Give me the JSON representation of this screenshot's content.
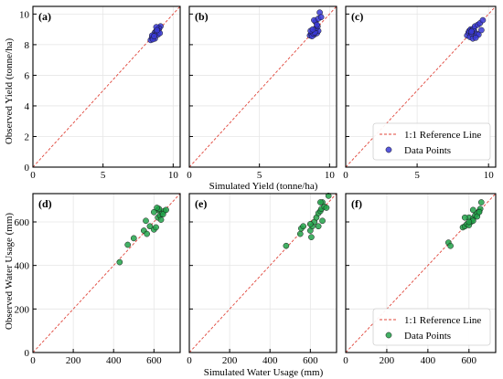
{
  "figure": {
    "top_ylabel": "Observed Yield (tonne/ha)",
    "top_xlabel": "Simulated Yield (tonne/ha)",
    "bottom_ylabel": "Observed Water Usage (mm)",
    "bottom_xlabel": "Simulated Water Usage (mm)"
  },
  "legend": {
    "reference_label": "1:1 Reference Line",
    "points_label": "Data Points"
  },
  "colors": {
    "yield_points": "#3a3ad6",
    "water_points": "#22a34a",
    "reference_line": "#e0453a",
    "grid": "#e6e6e6"
  },
  "chart_data": [
    {
      "type": "scatter",
      "panel_label": "(a)",
      "xlim": [
        0,
        10.5
      ],
      "ylim": [
        0,
        10.5
      ],
      "xticks": [
        "0",
        "5",
        "10"
      ],
      "yticks": [
        "0",
        "2",
        "4",
        "6",
        "8",
        "10"
      ],
      "xtick_values": [
        0,
        5,
        10
      ],
      "ytick_values": [
        0,
        2,
        4,
        6,
        8,
        10
      ],
      "grid": true,
      "reference_line": "1:1",
      "series": [
        {
          "name": "Data Points",
          "x": [
            8.4,
            8.5,
            8.6,
            8.7,
            8.8,
            8.9,
            9.0,
            9.1,
            8.6,
            8.8,
            8.9,
            9.0,
            8.5,
            8.7,
            8.95,
            9.05,
            8.55,
            8.8,
            8.65,
            8.85
          ],
          "y": [
            8.3,
            8.45,
            8.6,
            8.8,
            8.9,
            9.0,
            9.1,
            9.2,
            8.5,
            8.7,
            8.65,
            9.05,
            8.6,
            8.4,
            8.9,
            8.75,
            8.35,
            9.15,
            8.55,
            8.95
          ]
        }
      ]
    },
    {
      "type": "scatter",
      "panel_label": "(b)",
      "xlim": [
        0,
        10.5
      ],
      "ylim": [
        0,
        10.5
      ],
      "xticks": [
        "0",
        "5",
        "10"
      ],
      "yticks": [
        "0",
        "2",
        "4",
        "6",
        "8",
        "10"
      ],
      "xtick_values": [
        0,
        5,
        10
      ],
      "ytick_values": [
        0,
        2,
        4,
        6,
        8,
        10
      ],
      "grid": true,
      "reference_line": "1:1",
      "series": [
        {
          "name": "Data Points",
          "x": [
            8.6,
            8.7,
            8.8,
            8.9,
            9.0,
            9.1,
            9.2,
            8.75,
            8.85,
            8.95,
            9.05,
            9.15,
            8.65,
            8.8,
            9.0,
            9.1,
            9.3,
            8.9,
            9.2,
            9.4
          ],
          "y": [
            8.6,
            8.7,
            8.8,
            8.65,
            9.0,
            8.75,
            8.9,
            8.55,
            8.75,
            8.8,
            9.1,
            9.2,
            8.9,
            9.0,
            9.5,
            9.3,
            10.1,
            9.6,
            9.7,
            9.8
          ]
        }
      ]
    },
    {
      "type": "scatter",
      "panel_label": "(c)",
      "xlim": [
        0,
        10.5
      ],
      "ylim": [
        0,
        10.5
      ],
      "xticks": [
        "0",
        "5",
        "10"
      ],
      "yticks": [
        "0",
        "2",
        "4",
        "6",
        "8",
        "10"
      ],
      "xtick_values": [
        0,
        5,
        10
      ],
      "ytick_values": [
        0,
        2,
        4,
        6,
        8,
        10
      ],
      "grid": true,
      "reference_line": "1:1",
      "series": [
        {
          "name": "Data Points",
          "x": [
            8.5,
            8.6,
            8.7,
            8.8,
            8.9,
            9.0,
            9.1,
            9.2,
            9.3,
            9.5,
            8.65,
            8.75,
            8.85,
            8.95,
            9.05,
            9.25,
            9.4,
            9.6,
            8.8,
            9.1
          ],
          "y": [
            8.6,
            8.8,
            8.5,
            8.75,
            8.4,
            8.9,
            8.6,
            8.7,
            8.65,
            8.95,
            8.9,
            9.0,
            8.95,
            9.05,
            9.2,
            9.3,
            9.4,
            9.6,
            8.85,
            8.45
          ]
        }
      ]
    },
    {
      "type": "scatter",
      "panel_label": "(d)",
      "xlim": [
        0,
        730
      ],
      "ylim": [
        0,
        730
      ],
      "xticks": [
        "0",
        "200",
        "400",
        "600"
      ],
      "yticks": [
        "0",
        "200",
        "400",
        "600"
      ],
      "xtick_values": [
        0,
        200,
        400,
        600
      ],
      "ytick_values": [
        0,
        200,
        400,
        600
      ],
      "grid": true,
      "reference_line": "1:1",
      "series": [
        {
          "name": "Data Points",
          "x": [
            430,
            470,
            500,
            550,
            560,
            565,
            580,
            600,
            610,
            620,
            630,
            640,
            650,
            620,
            600,
            625,
            635,
            615,
            645,
            660
          ],
          "y": [
            415,
            495,
            525,
            560,
            605,
            545,
            580,
            565,
            575,
            620,
            630,
            640,
            650,
            655,
            645,
            660,
            610,
            665,
            635,
            655
          ]
        }
      ]
    },
    {
      "type": "scatter",
      "panel_label": "(e)",
      "xlim": [
        0,
        730
      ],
      "ylim": [
        0,
        730
      ],
      "xticks": [
        "0",
        "200",
        "400",
        "600"
      ],
      "yticks": [
        "0",
        "200",
        "400",
        "600"
      ],
      "xtick_values": [
        0,
        200,
        400,
        600
      ],
      "ytick_values": [
        0,
        200,
        400,
        600
      ],
      "grid": true,
      "reference_line": "1:1",
      "series": [
        {
          "name": "Data Points",
          "x": [
            480,
            550,
            555,
            565,
            600,
            605,
            610,
            620,
            630,
            640,
            650,
            655,
            660,
            670,
            680,
            690,
            600,
            640,
            660,
            650
          ],
          "y": [
            490,
            545,
            570,
            580,
            560,
            530,
            580,
            600,
            620,
            640,
            650,
            660,
            690,
            670,
            665,
            720,
            590,
            580,
            605,
            690
          ]
        }
      ]
    },
    {
      "type": "scatter",
      "panel_label": "(f)",
      "xlim": [
        0,
        730
      ],
      "ylim": [
        0,
        730
      ],
      "xticks": [
        "0",
        "200",
        "400",
        "600"
      ],
      "yticks": [
        "0",
        "200",
        "400",
        "600"
      ],
      "xtick_values": [
        0,
        200,
        400,
        600
      ],
      "ytick_values": [
        0,
        200,
        400,
        600
      ],
      "grid": true,
      "reference_line": "1:1",
      "series": [
        {
          "name": "Data Points",
          "x": [
            500,
            510,
            570,
            580,
            590,
            600,
            610,
            620,
            630,
            640,
            650,
            655,
            660,
            600,
            620,
            580,
            640,
            600,
            650,
            620
          ],
          "y": [
            505,
            490,
            575,
            580,
            590,
            620,
            600,
            615,
            630,
            640,
            650,
            660,
            690,
            585,
            605,
            620,
            625,
            600,
            645,
            655
          ]
        }
      ]
    }
  ]
}
